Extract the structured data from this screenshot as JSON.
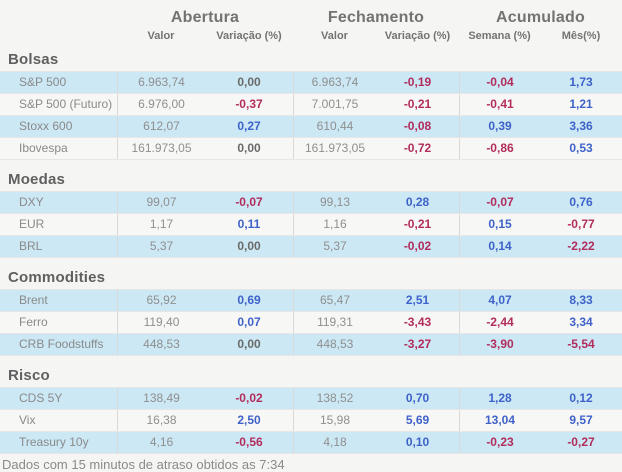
{
  "colors": {
    "page-bg": "#f5f5f3",
    "row-blue": "#cbe8f4",
    "row-white": "#f7f7f6",
    "grid-line": "#d9d9d9",
    "row-border": "#e6e6e6",
    "head-gray": "#737373",
    "title-gray": "#606060",
    "label-gray": "#8a8a8a",
    "value-gray": "#8f8f8f",
    "zero-gray": "#6a6a6a",
    "pos-blue": "#3f62c9",
    "neg-red": "#b22c5c",
    "footer-gray": "#8a8a8a"
  },
  "header": {
    "groups": [
      {
        "label": "Abertura",
        "cols": [
          "Valor",
          "Variação (%)"
        ]
      },
      {
        "label": "Fechamento",
        "cols": [
          "Valor",
          "Variação (%)"
        ]
      },
      {
        "label": "Acumulado",
        "cols": [
          "Semana (%)",
          "Mês(%)"
        ]
      }
    ]
  },
  "sections": [
    {
      "title": "Bolsas",
      "rows": [
        {
          "label": "S&P 500",
          "cells": [
            {
              "v": "6.963,74",
              "k": "val"
            },
            {
              "v": "0,00",
              "k": "zero"
            },
            {
              "v": "6.963,74",
              "k": "val"
            },
            {
              "v": "-0,19",
              "k": "neg"
            },
            {
              "v": "-0,04",
              "k": "neg"
            },
            {
              "v": "1,73",
              "k": "pos"
            }
          ]
        },
        {
          "label": "S&P 500 (Futuro)",
          "cells": [
            {
              "v": "6.976,00",
              "k": "val"
            },
            {
              "v": "-0,37",
              "k": "neg"
            },
            {
              "v": "7.001,75",
              "k": "val"
            },
            {
              "v": "-0,21",
              "k": "neg"
            },
            {
              "v": "-0,41",
              "k": "neg"
            },
            {
              "v": "1,21",
              "k": "pos"
            }
          ]
        },
        {
          "label": "Stoxx 600",
          "cells": [
            {
              "v": "612,07",
              "k": "val"
            },
            {
              "v": "0,27",
              "k": "pos"
            },
            {
              "v": "610,44",
              "k": "val"
            },
            {
              "v": "-0,08",
              "k": "neg"
            },
            {
              "v": "0,39",
              "k": "pos"
            },
            {
              "v": "3,36",
              "k": "pos"
            }
          ]
        },
        {
          "label": "Ibovespa",
          "cells": [
            {
              "v": "161.973,05",
              "k": "val"
            },
            {
              "v": "0,00",
              "k": "zero"
            },
            {
              "v": "161.973,05",
              "k": "val"
            },
            {
              "v": "-0,72",
              "k": "neg"
            },
            {
              "v": "-0,86",
              "k": "neg"
            },
            {
              "v": "0,53",
              "k": "pos"
            }
          ]
        }
      ]
    },
    {
      "title": "Moedas",
      "rows": [
        {
          "label": "DXY",
          "cells": [
            {
              "v": "99,07",
              "k": "val"
            },
            {
              "v": "-0,07",
              "k": "neg"
            },
            {
              "v": "99,13",
              "k": "val"
            },
            {
              "v": "0,28",
              "k": "pos"
            },
            {
              "v": "-0,07",
              "k": "neg"
            },
            {
              "v": "0,76",
              "k": "pos"
            }
          ]
        },
        {
          "label": "EUR",
          "cells": [
            {
              "v": "1,17",
              "k": "val"
            },
            {
              "v": "0,11",
              "k": "pos"
            },
            {
              "v": "1,16",
              "k": "val"
            },
            {
              "v": "-0,21",
              "k": "neg"
            },
            {
              "v": "0,15",
              "k": "pos"
            },
            {
              "v": "-0,77",
              "k": "neg"
            }
          ]
        },
        {
          "label": "BRL",
          "cells": [
            {
              "v": "5,37",
              "k": "val"
            },
            {
              "v": "0,00",
              "k": "zero"
            },
            {
              "v": "5,37",
              "k": "val"
            },
            {
              "v": "-0,02",
              "k": "neg"
            },
            {
              "v": "0,14",
              "k": "pos"
            },
            {
              "v": "-2,22",
              "k": "neg"
            }
          ]
        }
      ]
    },
    {
      "title": "Commodities",
      "rows": [
        {
          "label": "Brent",
          "cells": [
            {
              "v": "65,92",
              "k": "val"
            },
            {
              "v": "0,69",
              "k": "pos"
            },
            {
              "v": "65,47",
              "k": "val"
            },
            {
              "v": "2,51",
              "k": "pos"
            },
            {
              "v": "4,07",
              "k": "pos"
            },
            {
              "v": "8,33",
              "k": "pos"
            }
          ]
        },
        {
          "label": "Ferro",
          "cells": [
            {
              "v": "119,40",
              "k": "val"
            },
            {
              "v": "0,07",
              "k": "pos"
            },
            {
              "v": "119,31",
              "k": "val"
            },
            {
              "v": "-3,43",
              "k": "neg"
            },
            {
              "v": "-2,44",
              "k": "neg"
            },
            {
              "v": "3,34",
              "k": "pos"
            }
          ]
        },
        {
          "label": "CRB Foodstuffs",
          "cells": [
            {
              "v": "448,53",
              "k": "val"
            },
            {
              "v": "0,00",
              "k": "zero"
            },
            {
              "v": "448,53",
              "k": "val"
            },
            {
              "v": "-3,27",
              "k": "neg"
            },
            {
              "v": "-3,90",
              "k": "neg"
            },
            {
              "v": "-5,54",
              "k": "neg"
            }
          ]
        }
      ]
    },
    {
      "title": "Risco",
      "rows": [
        {
          "label": "CDS 5Y",
          "cells": [
            {
              "v": "138,49",
              "k": "val"
            },
            {
              "v": "-0,02",
              "k": "neg"
            },
            {
              "v": "138,52",
              "k": "val"
            },
            {
              "v": "0,70",
              "k": "pos"
            },
            {
              "v": "1,28",
              "k": "pos"
            },
            {
              "v": "0,12",
              "k": "pos"
            }
          ]
        },
        {
          "label": "Vix",
          "cells": [
            {
              "v": "16,38",
              "k": "val"
            },
            {
              "v": "2,50",
              "k": "pos"
            },
            {
              "v": "15,98",
              "k": "val"
            },
            {
              "v": "5,69",
              "k": "pos"
            },
            {
              "v": "13,04",
              "k": "pos"
            },
            {
              "v": "9,57",
              "k": "pos"
            }
          ]
        },
        {
          "label": "Treasury 10y",
          "cells": [
            {
              "v": "4,16",
              "k": "val"
            },
            {
              "v": "-0,56",
              "k": "neg"
            },
            {
              "v": "4,18",
              "k": "val"
            },
            {
              "v": "0,10",
              "k": "pos"
            },
            {
              "v": "-0,23",
              "k": "neg"
            },
            {
              "v": "-0,27",
              "k": "neg"
            }
          ]
        }
      ]
    }
  ],
  "footer": {
    "text": "Dados com 15 minutos de atraso obtidos as 7:34"
  }
}
